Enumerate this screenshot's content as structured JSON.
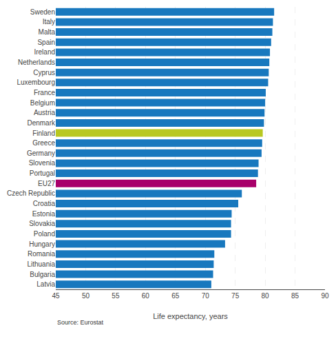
{
  "chart_data": {
    "type": "bar",
    "orientation": "horizontal",
    "xlabel": "Life expectancy, years",
    "annotations": [
      "Source: Eurostat"
    ],
    "categories": [
      "Sweden",
      "Italy",
      "Malta",
      "Spain",
      "Ireland",
      "Netherlands",
      "Cyprus",
      "Luxembourg",
      "France",
      "Belgium",
      "Austria",
      "Denmark",
      "Finland",
      "Greece",
      "Germany",
      "Slovenia",
      "Portugal",
      "EU27",
      "Czech Republic",
      "Croatia",
      "Estonia",
      "Slovakia",
      "Poland",
      "Hungary",
      "Romania",
      "Lithuania",
      "Bulgaria",
      "Latvia"
    ],
    "values": [
      81.5,
      81.3,
      81.2,
      81.0,
      80.8,
      80.7,
      80.6,
      80.5,
      80.1,
      80.0,
      79.9,
      79.8,
      79.6,
      79.5,
      79.4,
      78.9,
      78.8,
      78.5,
      76.1,
      75.5,
      74.4,
      74.3,
      74.3,
      73.3,
      71.5,
      71.4,
      71.3,
      71.0
    ],
    "colors": [
      "#1878be",
      "#1878be",
      "#1878be",
      "#1878be",
      "#1878be",
      "#1878be",
      "#1878be",
      "#1878be",
      "#1878be",
      "#1878be",
      "#1878be",
      "#1878be",
      "#b8c820",
      "#1878be",
      "#1878be",
      "#1878be",
      "#1878be",
      "#a8006a",
      "#1878be",
      "#1878be",
      "#1878be",
      "#1878be",
      "#1878be",
      "#1878be",
      "#1878be",
      "#1878be",
      "#1878be",
      "#1878be"
    ],
    "xlim": [
      45,
      90
    ],
    "xticks": [
      45,
      50,
      55,
      60,
      65,
      70,
      75,
      80,
      85,
      90
    ],
    "grid": true
  }
}
